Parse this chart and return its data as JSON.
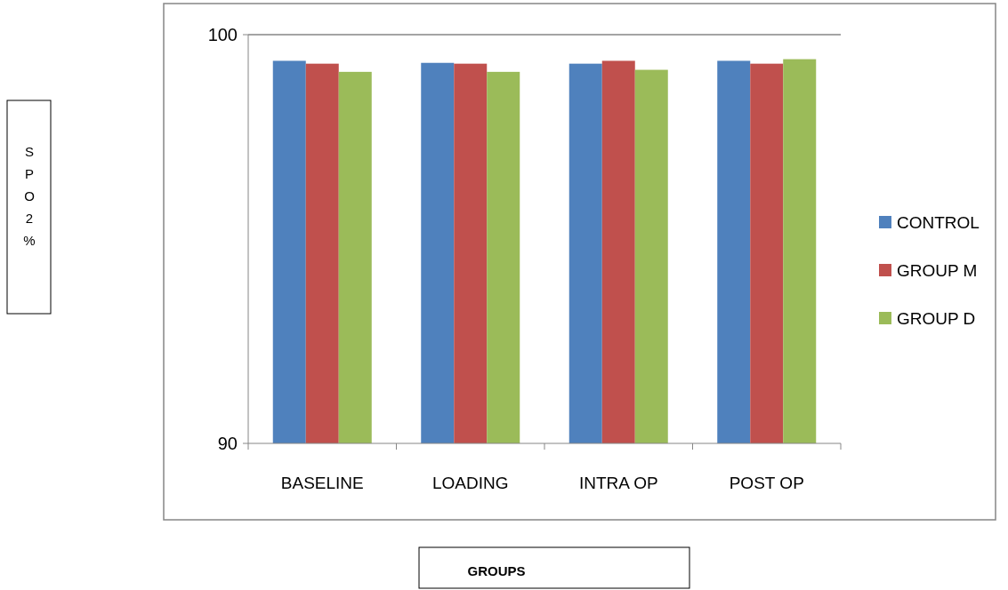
{
  "chart_data": {
    "type": "bar",
    "categories": [
      "BASELINE",
      "LOADING",
      "INTRA OP",
      "POST OP"
    ],
    "series": [
      {
        "name": "CONTROL",
        "color": "#4f81bd",
        "values": [
          99.36,
          99.31,
          99.29,
          99.36
        ]
      },
      {
        "name": "GROUP M",
        "color": "#c0504d",
        "values": [
          99.29,
          99.29,
          99.36,
          99.29
        ]
      },
      {
        "name": "GROUP D",
        "color": "#9bbb59",
        "values": [
          99.09,
          99.09,
          99.14,
          99.4
        ]
      }
    ],
    "ylim": [
      90,
      100
    ],
    "yticks": [
      90,
      100
    ],
    "legend": "right",
    "ref_lines": [
      {
        "axis": "y",
        "value": 100,
        "color": "#868686"
      }
    ],
    "annotations": [
      "SPO2%",
      "GROUPS"
    ]
  }
}
